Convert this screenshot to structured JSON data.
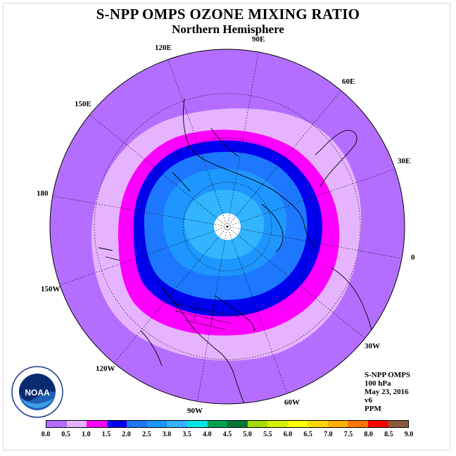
{
  "header": {
    "title": "S-NPP OMPS OZONE MIXING RATIO",
    "subtitle": "Northern Hemisphere"
  },
  "longitude_labels": [
    "90E",
    "60E",
    "30E",
    "0",
    "30W",
    "60W",
    "90W",
    "120W",
    "150W",
    "180",
    "150E",
    "120E"
  ],
  "info": {
    "instrument": "S-NPP OMPS",
    "level": "100 hPa",
    "date": "May 23, 2016",
    "version": "v6",
    "units": "PPM"
  },
  "colorbar": {
    "ticks": [
      "0.0",
      "0.5",
      "1.0",
      "1.5",
      "2.0",
      "2.5",
      "3.0",
      "3.5",
      "4.0",
      "4.5",
      "5.0",
      "5.5",
      "6.0",
      "6.5",
      "7.0",
      "7.5",
      "8.0",
      "8.5",
      "9.0"
    ],
    "colors": [
      "#b46eff",
      "#e6b4ff",
      "#ff00ff",
      "#0000ee",
      "#1e78ff",
      "#1e96ff",
      "#32b4ff",
      "#00e6e6",
      "#00a050",
      "#007832",
      "#a0dc00",
      "#d2f000",
      "#ffff00",
      "#ffd700",
      "#ffaf00",
      "#ff7800",
      "#ff0000",
      "#8b5a3c"
    ]
  },
  "colors": {
    "band_0_0.5": "#b46eff",
    "band_0.5_1.0": "#e6b4ff",
    "band_1.0_1.5": "#ff00ff",
    "band_1.5_2.0": "#0000ee",
    "band_2.0_2.5": "#1e78ff",
    "band_2.5_3.0": "#1e96ff",
    "band_3.0_3.5": "#32b4ff",
    "no_data_pole": "#ffffff"
  },
  "logo": {
    "text": "NOAA",
    "ring_text": "NATIONAL OCEANIC AND ATMOSPHERIC ADMINISTRATION · U.S. DEPARTMENT OF COMMERCE"
  }
}
